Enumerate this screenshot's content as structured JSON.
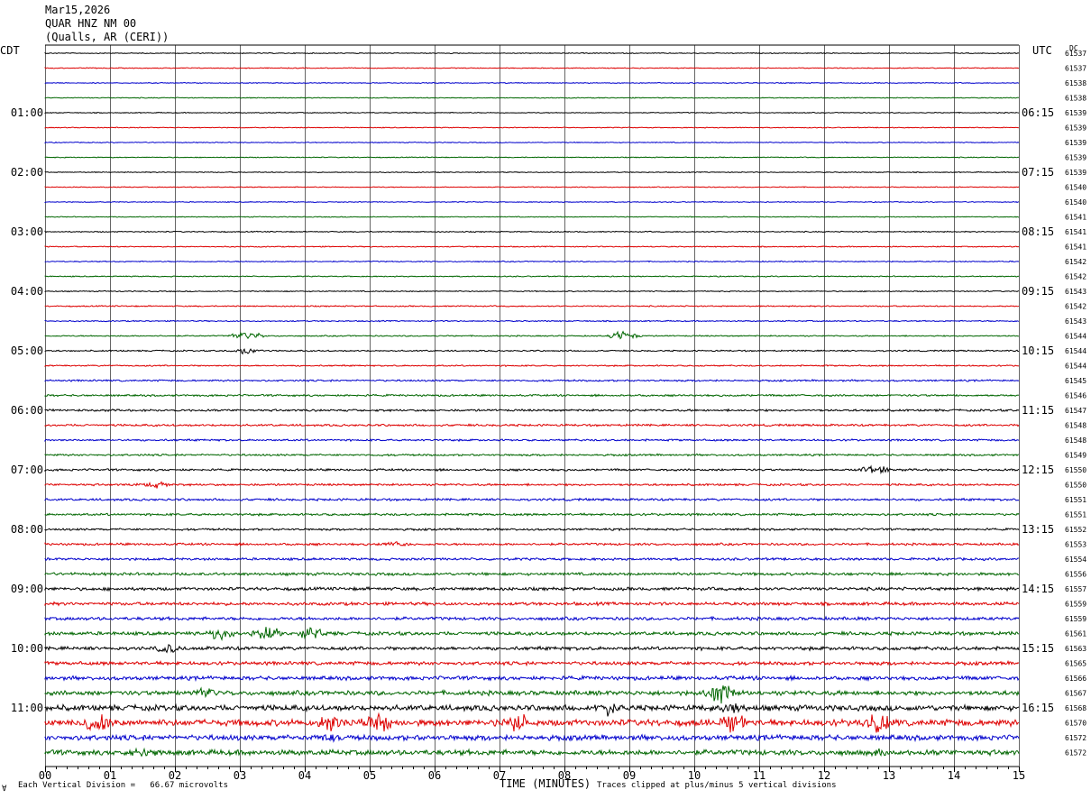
{
  "header": {
    "date": "Mar15,2026",
    "station": "QUAR HNZ NM 00",
    "location": "(Qualls, AR (CERI))"
  },
  "left_tz": "CDT",
  "right_tz": "UTC",
  "dc_label": "DC",
  "footer": {
    "scale_text": "Each Vertical Division =   66.67 microvolts",
    "xlabel": "TIME (MINUTES)",
    "clip_text": "Traces clipped at plus/minus 5 vertical divisions",
    "corner_mark": "∀"
  },
  "colors": {
    "trace_cycle": [
      "#000000",
      "#dd0000",
      "#0000cc",
      "#006600"
    ],
    "grid": "#000000",
    "background": "#ffffff"
  },
  "chart_data": {
    "type": "line",
    "subtype": "helicorder",
    "x_ticks": [
      "00",
      "01",
      "02",
      "03",
      "04",
      "05",
      "06",
      "07",
      "08",
      "09",
      "10",
      "11",
      "12",
      "13",
      "14",
      "15"
    ],
    "xlim": [
      0,
      15
    ],
    "trace_count": 48,
    "left_hour_labels": [
      {
        "row": 4,
        "text": "01:00"
      },
      {
        "row": 8,
        "text": "02:00"
      },
      {
        "row": 12,
        "text": "03:00"
      },
      {
        "row": 16,
        "text": "04:00"
      },
      {
        "row": 20,
        "text": "05:00"
      },
      {
        "row": 24,
        "text": "06:00"
      },
      {
        "row": 28,
        "text": "07:00"
      },
      {
        "row": 32,
        "text": "08:00"
      },
      {
        "row": 36,
        "text": "09:00"
      },
      {
        "row": 40,
        "text": "10:00"
      },
      {
        "row": 44,
        "text": "11:00"
      }
    ],
    "right_hour_labels": [
      {
        "row": 4,
        "text": "06:15"
      },
      {
        "row": 8,
        "text": "07:15"
      },
      {
        "row": 12,
        "text": "08:15"
      },
      {
        "row": 16,
        "text": "09:15"
      },
      {
        "row": 20,
        "text": "10:15"
      },
      {
        "row": 24,
        "text": "11:15"
      },
      {
        "row": 28,
        "text": "12:15"
      },
      {
        "row": 32,
        "text": "13:15"
      },
      {
        "row": 36,
        "text": "14:15"
      },
      {
        "row": 40,
        "text": "15:15"
      },
      {
        "row": 44,
        "text": "16:15"
      }
    ],
    "dc_values": [
      "61537",
      "61537",
      "61538",
      "61538",
      "61539",
      "61539",
      "61539",
      "61539",
      "61539",
      "61540",
      "61540",
      "61541",
      "61541",
      "61541",
      "61542",
      "61542",
      "61543",
      "61542",
      "61543",
      "61544",
      "61544",
      "61544",
      "61545",
      "61546",
      "61547",
      "61548",
      "61548",
      "61549",
      "61550",
      "61550",
      "61551",
      "61551",
      "61552",
      "61553",
      "61554",
      "61556",
      "61557",
      "61559",
      "61559",
      "61561",
      "61563",
      "61565",
      "61566",
      "61567",
      "61568",
      "61570",
      "61572",
      "61572"
    ],
    "amplitude_level": [
      0.25,
      0.25,
      0.25,
      0.25,
      0.25,
      0.25,
      0.25,
      0.25,
      0.25,
      0.25,
      0.25,
      0.25,
      0.3,
      0.3,
      0.3,
      0.3,
      0.3,
      0.35,
      0.35,
      0.35,
      0.4,
      0.4,
      0.5,
      0.55,
      0.6,
      0.6,
      0.55,
      0.55,
      0.6,
      0.6,
      0.65,
      0.65,
      0.6,
      0.65,
      0.7,
      0.8,
      0.9,
      0.9,
      0.9,
      1.0,
      1.0,
      1.0,
      1.1,
      1.3,
      1.6,
      1.8,
      1.5,
      1.5
    ],
    "events": [
      {
        "row": 19,
        "minute": 3.1,
        "amp": 3
      },
      {
        "row": 19,
        "minute": 8.9,
        "amp": 3
      },
      {
        "row": 20,
        "minute": 3.1,
        "amp": 2
      },
      {
        "row": 28,
        "minute": 12.8,
        "amp": 3
      },
      {
        "row": 29,
        "minute": 1.7,
        "amp": 2
      },
      {
        "row": 33,
        "minute": 5.4,
        "amp": 2
      },
      {
        "row": 39,
        "minute": 2.7,
        "amp": 4
      },
      {
        "row": 39,
        "minute": 3.4,
        "amp": 5
      },
      {
        "row": 39,
        "minute": 4.1,
        "amp": 4
      },
      {
        "row": 40,
        "minute": 1.9,
        "amp": 3
      },
      {
        "row": 43,
        "minute": 2.5,
        "amp": 4
      },
      {
        "row": 43,
        "minute": 10.4,
        "amp": 7
      },
      {
        "row": 44,
        "minute": 8.7,
        "amp": 5
      },
      {
        "row": 44,
        "minute": 10.6,
        "amp": 4
      },
      {
        "row": 45,
        "minute": 0.8,
        "amp": 7
      },
      {
        "row": 45,
        "minute": 4.4,
        "amp": 6
      },
      {
        "row": 45,
        "minute": 5.1,
        "amp": 7
      },
      {
        "row": 45,
        "minute": 7.3,
        "amp": 6
      },
      {
        "row": 45,
        "minute": 10.6,
        "amp": 6
      },
      {
        "row": 45,
        "minute": 12.8,
        "amp": 7
      },
      {
        "row": 46,
        "minute": 4.3,
        "amp": 3
      },
      {
        "row": 47,
        "minute": 1.5,
        "amp": 4
      },
      {
        "row": 47,
        "minute": 12.9,
        "amp": 3
      }
    ]
  }
}
